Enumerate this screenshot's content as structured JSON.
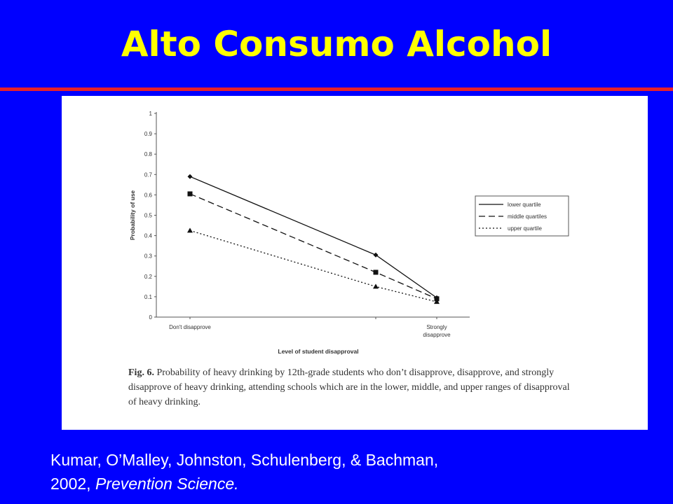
{
  "slide": {
    "title": "Alto Consumo Alcohol",
    "citation_authors": "Kumar, O’Malley, Johnston, Schulenberg, & Bachman,",
    "citation_year": "2002,",
    "citation_journal": "Prevention Science."
  },
  "colors": {
    "background": "#0000ff",
    "title": "#ffff00",
    "rule": "#e8202a",
    "citation": "#ffffff"
  },
  "caption": {
    "label": "Fig. 6.",
    "text": "Probability of heavy drinking by 12th-grade students who don’t disapprove, disapprove, and strongly disapprove of heavy drinking, attending schools which are in the lower, middle, and upper ranges of disapproval of heavy drinking."
  },
  "chart_data": {
    "type": "line",
    "xlabel": "Level of student disapproval",
    "ylabel": "Probability of use",
    "x_tick_labels": [
      "Don't disapprove",
      "",
      "Strongly disapprove"
    ],
    "ylim": [
      0,
      1
    ],
    "y_ticks": [
      "0",
      "0.1",
      "0.2",
      "0.3",
      "0.4",
      "0.5",
      "0.6",
      "0.7",
      "0.8",
      "0.9",
      "1"
    ],
    "y_tick_values": [
      0,
      0.1,
      0.2,
      0.3,
      0.4,
      0.5,
      0.6,
      0.7,
      0.8,
      0.9,
      1
    ],
    "x": [
      0,
      1,
      2
    ],
    "legend_position": "right",
    "series": [
      {
        "name": "lower quartile",
        "values": [
          0.69,
          0.305,
          0.095
        ],
        "line": "solid",
        "marker": "diamond"
      },
      {
        "name": "middle quartiles",
        "values": [
          0.605,
          0.22,
          0.09
        ],
        "line": "dashed",
        "marker": "square"
      },
      {
        "name": "upper quartile",
        "values": [
          0.425,
          0.15,
          0.075
        ],
        "line": "dotted",
        "marker": "triangle"
      }
    ]
  }
}
